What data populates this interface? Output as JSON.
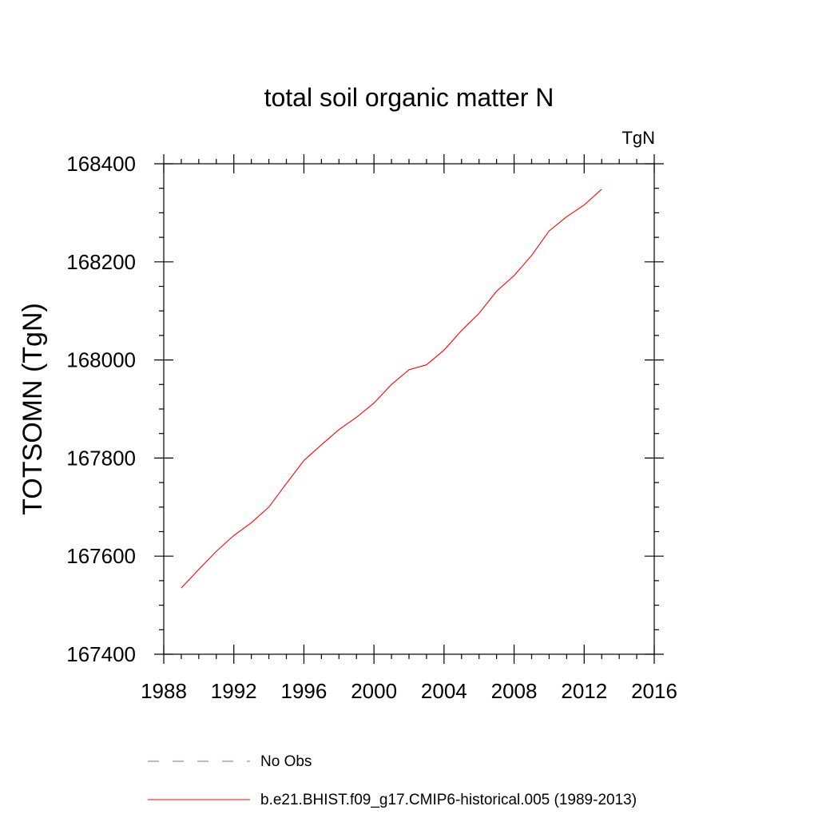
{
  "chart_data": {
    "type": "line",
    "title": "total soil organic matter N",
    "units": "TgN",
    "ylabel": "TOTSOMN  (TgN)",
    "xlabel": "",
    "xlim": [
      1988,
      2016
    ],
    "ylim": [
      167400,
      168400
    ],
    "xticks": [
      1988,
      1992,
      1996,
      2000,
      2004,
      2008,
      2012,
      2016
    ],
    "xtick_labels": [
      "1988",
      "1992",
      "1996",
      "2000",
      "2004",
      "2008",
      "2012",
      "2016"
    ],
    "yticks": [
      167400,
      167600,
      167800,
      168000,
      168200,
      168400
    ],
    "ytick_labels": [
      "167400",
      "167600",
      "167800",
      "168000",
      "168200",
      "168400"
    ],
    "x_minor_step": 1,
    "y_minor_step": 50,
    "grid": false,
    "legend_position": "bottom",
    "series": [
      {
        "name": "b.e21.BHIST.f09_g17.CMIP6-historical.005 (1989-2013)",
        "color": "#ff0000",
        "dash": "solid",
        "x": [
          1989,
          1990,
          1991,
          1992,
          1993,
          1994,
          1995,
          1996,
          1997,
          1998,
          1999,
          2000,
          2001,
          2002,
          2003,
          2004,
          2005,
          2006,
          2007,
          2008,
          2009,
          2010,
          2011,
          2012,
          2013
        ],
        "y": [
          167535,
          167573,
          167610,
          167642,
          167668,
          167700,
          167748,
          167795,
          167827,
          167858,
          167883,
          167912,
          167950,
          167980,
          167990,
          168020,
          168060,
          168095,
          168140,
          168172,
          168213,
          168263,
          168292,
          168316,
          168348
        ]
      }
    ],
    "legend": [
      {
        "name": "No Obs",
        "color": "#6b6bcc",
        "dash": "dashed"
      },
      {
        "name": "b.e21.BHIST.f09_g17.CMIP6-historical.005 (1989-2013)",
        "color": "#ff0000",
        "dash": "solid"
      }
    ]
  }
}
